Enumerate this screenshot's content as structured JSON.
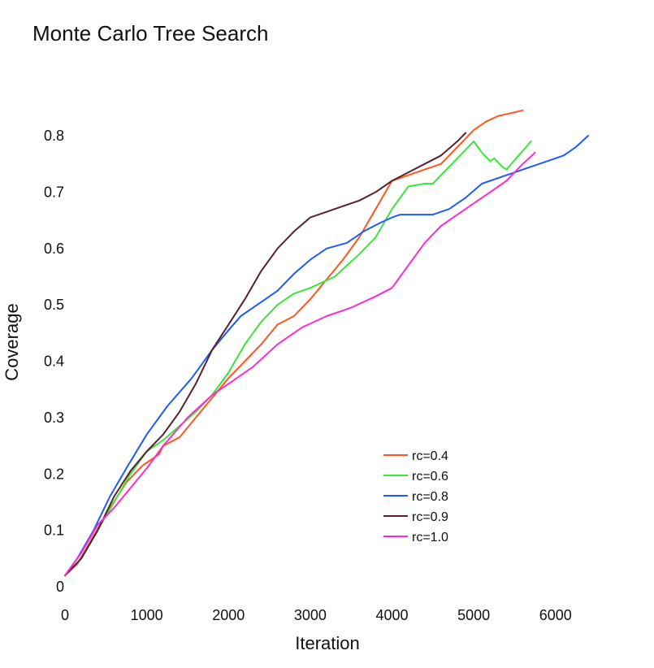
{
  "chart_data": {
    "type": "line",
    "title": "Monte Carlo Tree Search",
    "xlabel": "Iteration",
    "ylabel": "Coverage",
    "xlim": [
      0,
      6400
    ],
    "ylim": [
      0,
      0.8
    ],
    "x_ticks": [
      0,
      1000,
      2000,
      3000,
      4000,
      5000,
      6000
    ],
    "x_tick_labels": [
      "0",
      "1000",
      "2000",
      "3000",
      "4000",
      "5000",
      "6000"
    ],
    "y_ticks": [
      0,
      0.1,
      0.2,
      0.3,
      0.4,
      0.5,
      0.6,
      0.7,
      0.8
    ],
    "y_tick_labels": [
      "0",
      "0.1",
      "0.2",
      "0.3",
      "0.4",
      "0.5",
      "0.6",
      "0.7",
      "0.8"
    ],
    "grid": false,
    "legend_position": "bottom-right",
    "series": [
      {
        "name": "rc=0.4",
        "color": "#ff5722",
        "points": [
          [
            0,
            0.02
          ],
          [
            150,
            0.04
          ],
          [
            350,
            0.09
          ],
          [
            550,
            0.14
          ],
          [
            750,
            0.185
          ],
          [
            950,
            0.215
          ],
          [
            1150,
            0.235
          ],
          [
            1200,
            0.25
          ],
          [
            1400,
            0.265
          ],
          [
            1600,
            0.3
          ],
          [
            1800,
            0.335
          ],
          [
            2000,
            0.37
          ],
          [
            2200,
            0.4
          ],
          [
            2400,
            0.43
          ],
          [
            2600,
            0.465
          ],
          [
            2800,
            0.48
          ],
          [
            3000,
            0.51
          ],
          [
            3200,
            0.545
          ],
          [
            3400,
            0.58
          ],
          [
            3600,
            0.62
          ],
          [
            3800,
            0.67
          ],
          [
            4000,
            0.72
          ],
          [
            4200,
            0.73
          ],
          [
            4400,
            0.74
          ],
          [
            4600,
            0.75
          ],
          [
            4800,
            0.78
          ],
          [
            5000,
            0.81
          ],
          [
            5150,
            0.825
          ],
          [
            5300,
            0.835
          ],
          [
            5450,
            0.84
          ],
          [
            5600,
            0.845
          ]
        ]
      },
      {
        "name": "rc=0.6",
        "color": "#39e639",
        "points": [
          [
            0,
            0.02
          ],
          [
            200,
            0.05
          ],
          [
            400,
            0.1
          ],
          [
            600,
            0.15
          ],
          [
            800,
            0.2
          ],
          [
            1000,
            0.24
          ],
          [
            1200,
            0.26
          ],
          [
            1400,
            0.285
          ],
          [
            1600,
            0.31
          ],
          [
            1800,
            0.34
          ],
          [
            2000,
            0.38
          ],
          [
            2200,
            0.43
          ],
          [
            2400,
            0.47
          ],
          [
            2600,
            0.5
          ],
          [
            2800,
            0.52
          ],
          [
            3000,
            0.53
          ],
          [
            3300,
            0.55
          ],
          [
            3600,
            0.59
          ],
          [
            3800,
            0.62
          ],
          [
            4000,
            0.67
          ],
          [
            4200,
            0.71
          ],
          [
            4400,
            0.715
          ],
          [
            4500,
            0.715
          ],
          [
            4700,
            0.745
          ],
          [
            4900,
            0.775
          ],
          [
            5000,
            0.79
          ],
          [
            5100,
            0.77
          ],
          [
            5200,
            0.755
          ],
          [
            5250,
            0.76
          ],
          [
            5350,
            0.745
          ],
          [
            5400,
            0.74
          ],
          [
            5550,
            0.765
          ],
          [
            5700,
            0.79
          ]
        ]
      },
      {
        "name": "rc=0.8",
        "color": "#1e5bff",
        "points": [
          [
            0,
            0.02
          ],
          [
            150,
            0.05
          ],
          [
            350,
            0.1
          ],
          [
            550,
            0.16
          ],
          [
            750,
            0.21
          ],
          [
            1000,
            0.27
          ],
          [
            1250,
            0.32
          ],
          [
            1550,
            0.37
          ],
          [
            1800,
            0.42
          ],
          [
            2000,
            0.455
          ],
          [
            2150,
            0.48
          ],
          [
            2400,
            0.505
          ],
          [
            2600,
            0.525
          ],
          [
            2800,
            0.555
          ],
          [
            3000,
            0.58
          ],
          [
            3200,
            0.6
          ],
          [
            3450,
            0.61
          ],
          [
            3650,
            0.63
          ],
          [
            3850,
            0.645
          ],
          [
            4000,
            0.655
          ],
          [
            4100,
            0.66
          ],
          [
            4300,
            0.66
          ],
          [
            4500,
            0.66
          ],
          [
            4700,
            0.67
          ],
          [
            4900,
            0.69
          ],
          [
            5100,
            0.715
          ],
          [
            5400,
            0.73
          ],
          [
            5700,
            0.745
          ],
          [
            6000,
            0.76
          ],
          [
            6100,
            0.765
          ],
          [
            6250,
            0.78
          ],
          [
            6400,
            0.8
          ]
        ]
      },
      {
        "name": "rc=0.9",
        "color": "#55222f",
        "points": [
          [
            0,
            0.02
          ],
          [
            200,
            0.05
          ],
          [
            400,
            0.1
          ],
          [
            600,
            0.16
          ],
          [
            800,
            0.205
          ],
          [
            1000,
            0.24
          ],
          [
            1200,
            0.27
          ],
          [
            1400,
            0.31
          ],
          [
            1600,
            0.36
          ],
          [
            1800,
            0.42
          ],
          [
            2000,
            0.465
          ],
          [
            2200,
            0.51
          ],
          [
            2400,
            0.56
          ],
          [
            2600,
            0.6
          ],
          [
            2800,
            0.63
          ],
          [
            3000,
            0.655
          ],
          [
            3200,
            0.665
          ],
          [
            3400,
            0.675
          ],
          [
            3600,
            0.685
          ],
          [
            3800,
            0.7
          ],
          [
            4000,
            0.72
          ],
          [
            4200,
            0.735
          ],
          [
            4400,
            0.75
          ],
          [
            4600,
            0.765
          ],
          [
            4800,
            0.79
          ],
          [
            4900,
            0.805
          ]
        ]
      },
      {
        "name": "rc=1.0",
        "color": "#ff2bd1",
        "points": [
          [
            0,
            0.02
          ],
          [
            200,
            0.06
          ],
          [
            400,
            0.11
          ],
          [
            600,
            0.14
          ],
          [
            800,
            0.175
          ],
          [
            1000,
            0.21
          ],
          [
            1200,
            0.25
          ],
          [
            1500,
            0.3
          ],
          [
            1800,
            0.34
          ],
          [
            2000,
            0.36
          ],
          [
            2300,
            0.39
          ],
          [
            2600,
            0.43
          ],
          [
            2900,
            0.46
          ],
          [
            3200,
            0.48
          ],
          [
            3500,
            0.495
          ],
          [
            3800,
            0.515
          ],
          [
            4000,
            0.53
          ],
          [
            4100,
            0.55
          ],
          [
            4200,
            0.57
          ],
          [
            4400,
            0.61
          ],
          [
            4600,
            0.64
          ],
          [
            4800,
            0.66
          ],
          [
            5000,
            0.68
          ],
          [
            5200,
            0.7
          ],
          [
            5400,
            0.72
          ],
          [
            5500,
            0.735
          ],
          [
            5600,
            0.75
          ],
          [
            5750,
            0.77
          ]
        ]
      }
    ]
  }
}
